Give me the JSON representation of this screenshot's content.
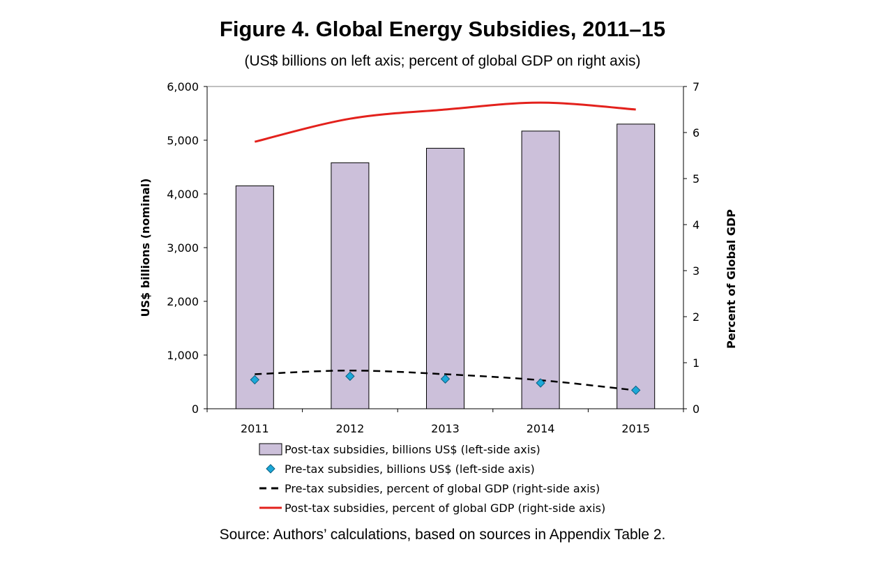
{
  "title": "Figure 4. Global Energy Subsidies, 2011–15",
  "subtitle": "(US$ billions on left axis; percent of global GDP on right axis)",
  "source": "Source: Authors’ calculations, based on sources in Appendix Table 2.",
  "colors": {
    "bar_fill": "#CCC0DA",
    "bar_stroke": "#000000",
    "marker": "#1CA8D8",
    "pretax_line": "#000000",
    "posttax_line": "#E3211C"
  },
  "chart_data": {
    "type": "bar",
    "categories": [
      "2011",
      "2012",
      "2013",
      "2014",
      "2015"
    ],
    "left_axis": {
      "label": "US$ billions (nominal)",
      "range": [
        0,
        6000
      ],
      "ticks": [
        0,
        1000,
        2000,
        3000,
        4000,
        5000,
        6000
      ],
      "tick_labels": [
        "0",
        "1,000",
        "2,000",
        "3,000",
        "4,000",
        "5,000",
        "6,000"
      ]
    },
    "right_axis": {
      "label": "Percent of Global GDP",
      "range": [
        0,
        7
      ],
      "ticks": [
        0,
        1,
        2,
        3,
        4,
        5,
        6,
        7
      ],
      "tick_labels": [
        "0",
        "1",
        "2",
        "3",
        "4",
        "5",
        "6",
        "7"
      ]
    },
    "series": [
      {
        "name": "Post-tax subsidies, billions US$ (left-side axis)",
        "type": "bar",
        "axis": "left",
        "values": [
          4150,
          4580,
          4850,
          5170,
          5300
        ]
      },
      {
        "name": "Pre-tax subsidies, billions US$ (left-side axis)",
        "type": "scatter",
        "axis": "left",
        "values": [
          540,
          605,
          555,
          480,
          345
        ]
      },
      {
        "name": "Pre-tax subsidies, percent of global GDP (right-side axis)",
        "type": "line",
        "style": "dashed",
        "axis": "right",
        "values": [
          0.75,
          0.83,
          0.75,
          0.62,
          0.4
        ]
      },
      {
        "name": "Post-tax subsidies, percent of global GDP (right-side axis)",
        "type": "line",
        "style": "solid",
        "axis": "right",
        "values": [
          5.8,
          6.3,
          6.5,
          6.65,
          6.5
        ]
      }
    ],
    "grid": false,
    "legend_position": "bottom"
  }
}
